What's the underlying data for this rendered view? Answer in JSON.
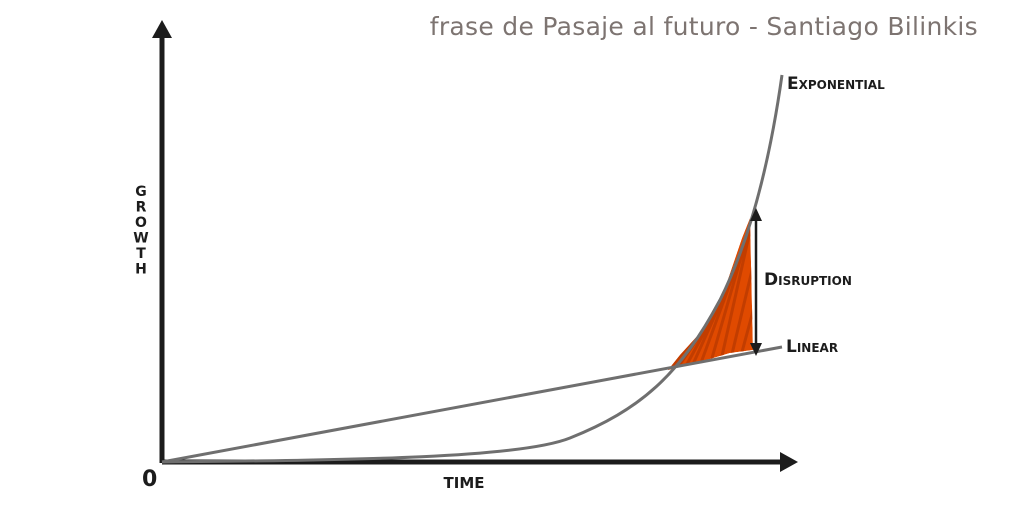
{
  "header": {
    "title": "frase de Pasaje al futuro - Santiago Bilinkis"
  },
  "diagram": {
    "origin_label": "0",
    "x_axis_label": "TIME",
    "y_axis_label": "GROWTH",
    "curves": [
      {
        "name": "Exponential",
        "color": "#6f6f6f"
      },
      {
        "name": "Linear",
        "color": "#6f6f6f"
      }
    ],
    "gap_label": "Disruption",
    "highlight_color": "#e04a00",
    "axis_color": "#1c1c1c"
  }
}
